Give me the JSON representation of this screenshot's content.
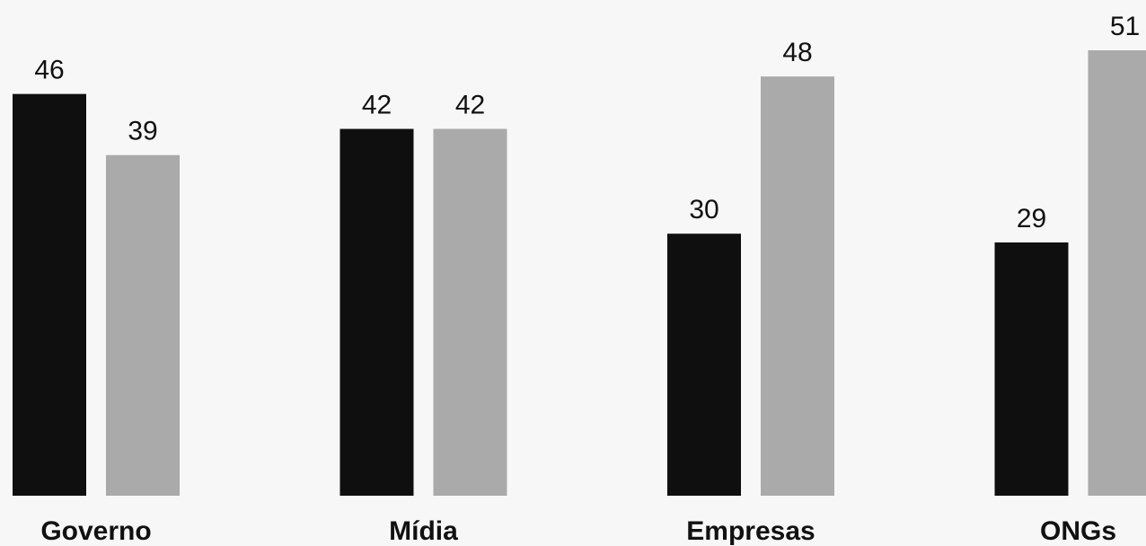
{
  "chart_data": {
    "type": "bar",
    "categories": [
      "Governo",
      "Mídia",
      "Empresas",
      "ONGs"
    ],
    "series": [
      {
        "values": [
          46,
          42,
          30,
          29
        ],
        "color": "#0f0f0f"
      },
      {
        "values": [
          39,
          42,
          48,
          51
        ],
        "color": "#aaaaaa"
      }
    ],
    "title": "",
    "xlabel": "",
    "ylabel": "",
    "ylim": [
      0,
      51
    ],
    "grid": false,
    "legend": "none"
  },
  "colors": {
    "background": "#f7f7f7",
    "text": "#111111"
  }
}
